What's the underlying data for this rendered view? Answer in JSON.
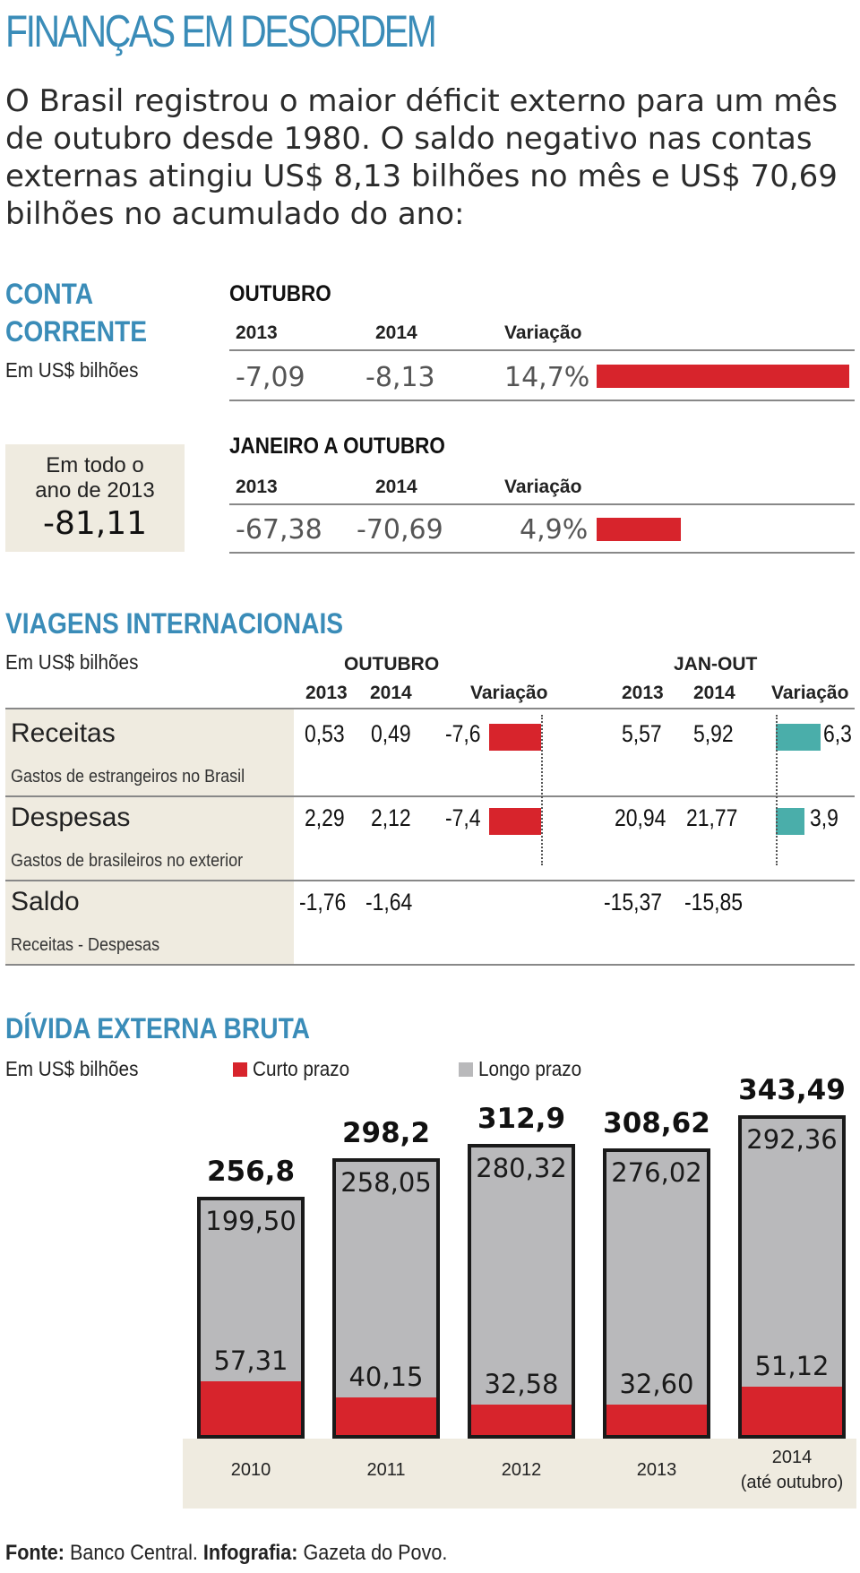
{
  "title": "FINANÇAS EM DESORDEM",
  "intro": "O Brasil registrou o maior déficit externo para um mês de outubro desde 1980. O saldo negativo nas contas externas atingiu US$ 8,13 bilhões no mês e US$ 70,69 bilhões no acumulado do ano:",
  "conta_corrente": {
    "title_line1": "CONTA",
    "title_line2": "CORRENTE",
    "unit": "Em US$ bilhões",
    "box_line1": "Em todo o",
    "box_line2": "ano de 2013",
    "box_value": "-81,11",
    "outubro": {
      "header": "OUTUBRO",
      "col1": "2013",
      "col2": "2014",
      "col3": "Variação",
      "v2013": "-7,09",
      "v2014": "-8,13",
      "var": "14,7%"
    },
    "jan_out": {
      "header": "JANEIRO A OUTUBRO",
      "col1": "2013",
      "col2": "2014",
      "col3": "Variação",
      "v2013": "-67,38",
      "v2014": "-70,69",
      "var": "4,9%"
    }
  },
  "viagens": {
    "title": "VIAGENS INTERNACIONAIS",
    "unit": "Em US$ bilhões",
    "outubro_header": "OUTUBRO",
    "janout_header": "JAN-OUT",
    "col_2013": "2013",
    "col_2014": "2014",
    "col_var": "Variação",
    "rows": [
      {
        "label": "Receitas",
        "sub": "Gastos de estrangeiros no Brasil",
        "o2013": "0,53",
        "o2014": "0,49",
        "ovar": "-7,6",
        "j2013": "5,57",
        "j2014": "5,92",
        "jvar": "6,3"
      },
      {
        "label": "Despesas",
        "sub": "Gastos de brasileiros no exterior",
        "o2013": "2,29",
        "o2014": "2,12",
        "ovar": "-7,4",
        "j2013": "20,94",
        "j2014": "21,77",
        "jvar": "3,9"
      },
      {
        "label": "Saldo",
        "sub": "Receitas - Despesas",
        "o2013": "-1,76",
        "o2014": "-1,64",
        "j2013": "-15,37",
        "j2014": "-15,85"
      }
    ]
  },
  "divida": {
    "title": "DÍVIDA EXTERNA BRUTA",
    "unit": "Em US$ bilhões",
    "legend_short": "Curto prazo",
    "legend_long": "Longo prazo"
  },
  "chart_data": {
    "type": "bar",
    "stacked": true,
    "categories": [
      "2010",
      "2011",
      "2012",
      "2013",
      "2014 (até outubro)"
    ],
    "category_lines": [
      [
        "2010"
      ],
      [
        "2011"
      ],
      [
        "2012"
      ],
      [
        "2013"
      ],
      [
        "2014",
        "(até outubro)"
      ]
    ],
    "series": [
      {
        "name": "Curto prazo",
        "values": [
          57.31,
          40.15,
          32.58,
          32.6,
          51.12
        ],
        "labels": [
          "57,31",
          "40,15",
          "32,58",
          "32,60",
          "51,12"
        ],
        "color": "#d7242c"
      },
      {
        "name": "Longo prazo",
        "values": [
          199.5,
          258.05,
          280.32,
          276.02,
          292.36
        ],
        "labels": [
          "199,50",
          "258,05",
          "280,32",
          "276,02",
          "292,36"
        ],
        "color": "#b9b9bb"
      }
    ],
    "totals": [
      "256,8",
      "298,2",
      "312,9",
      "308,62",
      "343,49"
    ],
    "total_values": [
      256.8,
      298.2,
      312.9,
      308.62,
      343.49
    ]
  },
  "footer": {
    "source_label": "Fonte:",
    "source": "Banco Central.",
    "info_label": "Infografia:",
    "info": "Gazeta do Povo."
  }
}
